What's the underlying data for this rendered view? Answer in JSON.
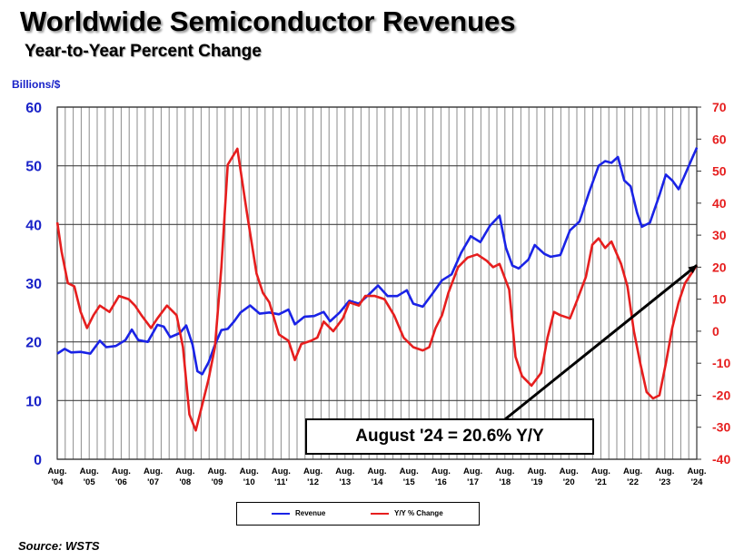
{
  "title": "Worldwide Semiconductor Revenues",
  "subtitle": "Year-to-Year Percent Change",
  "source": "Source: WSTS",
  "colors": {
    "revenue": "#1a23e6",
    "yoy": "#e61e1e",
    "left_axis": "#1a23c8",
    "right_axis": "#e61e1e"
  },
  "chart_data": {
    "type": "line",
    "y_left_label": "Billions/$",
    "y_left_range": [
      0,
      60
    ],
    "y_left_ticks": [
      "0",
      "10",
      "20",
      "30",
      "40",
      "50",
      "60"
    ],
    "y_right_range": [
      -40,
      70
    ],
    "y_right_ticks": [
      "-40",
      "-30",
      "-20",
      "-10",
      "0",
      "10",
      "20",
      "30",
      "40",
      "50",
      "60",
      "70"
    ],
    "x_range": [
      2004.667,
      2024.667
    ],
    "x_ticks": [
      {
        "x": 2004.667,
        "top": "Aug.",
        "bottom": "'04"
      },
      {
        "x": 2005.667,
        "top": "Aug.",
        "bottom": "'05"
      },
      {
        "x": 2006.667,
        "top": "Aug.",
        "bottom": "'06"
      },
      {
        "x": 2007.667,
        "top": "Aug.",
        "bottom": "'07"
      },
      {
        "x": 2008.667,
        "top": "Aug.",
        "bottom": "'08"
      },
      {
        "x": 2009.667,
        "top": "Aug.",
        "bottom": "'09"
      },
      {
        "x": 2010.667,
        "top": "Aug.",
        "bottom": "'10"
      },
      {
        "x": 2011.667,
        "top": "Aug.",
        "bottom": "'11'"
      },
      {
        "x": 2012.667,
        "top": "Aug.",
        "bottom": "'12"
      },
      {
        "x": 2013.667,
        "top": "Aug.",
        "bottom": "'13"
      },
      {
        "x": 2014.667,
        "top": "Aug.",
        "bottom": "'14"
      },
      {
        "x": 2015.667,
        "top": "Aug.",
        "bottom": "'15"
      },
      {
        "x": 2016.667,
        "top": "Aug.",
        "bottom": "'16"
      },
      {
        "x": 2017.667,
        "top": "Aug.",
        "bottom": "'17"
      },
      {
        "x": 2018.667,
        "top": "Aug.",
        "bottom": "'18"
      },
      {
        "x": 2019.667,
        "top": "Aug.",
        "bottom": "'19"
      },
      {
        "x": 2020.667,
        "top": "Aug.",
        "bottom": "'20"
      },
      {
        "x": 2021.667,
        "top": "Aug.",
        "bottom": "'21"
      },
      {
        "x": 2022.667,
        "top": "Aug.",
        "bottom": "'22"
      },
      {
        "x": 2023.667,
        "top": "Aug.",
        "bottom": "'23"
      },
      {
        "x": 2024.667,
        "top": "Aug.",
        "bottom": "'24"
      }
    ],
    "grid": "vertical",
    "series": [
      {
        "name": "Revenue",
        "axis": "left",
        "points": [
          [
            2004.67,
            18.0
          ],
          [
            2004.9,
            18.8
          ],
          [
            2005.1,
            18.2
          ],
          [
            2005.4,
            18.3
          ],
          [
            2005.7,
            18.0
          ],
          [
            2006.0,
            20.2
          ],
          [
            2006.2,
            19.1
          ],
          [
            2006.5,
            19.3
          ],
          [
            2006.8,
            20.3
          ],
          [
            2007.0,
            22.1
          ],
          [
            2007.2,
            20.3
          ],
          [
            2007.5,
            20.0
          ],
          [
            2007.8,
            22.9
          ],
          [
            2008.0,
            22.6
          ],
          [
            2008.2,
            20.8
          ],
          [
            2008.5,
            21.5
          ],
          [
            2008.7,
            22.8
          ],
          [
            2008.9,
            19.5
          ],
          [
            2009.05,
            15.0
          ],
          [
            2009.2,
            14.5
          ],
          [
            2009.4,
            16.5
          ],
          [
            2009.6,
            19.5
          ],
          [
            2009.8,
            22.0
          ],
          [
            2010.0,
            22.2
          ],
          [
            2010.2,
            23.5
          ],
          [
            2010.4,
            25.0
          ],
          [
            2010.7,
            26.2
          ],
          [
            2011.0,
            24.8
          ],
          [
            2011.3,
            25.0
          ],
          [
            2011.6,
            24.7
          ],
          [
            2011.9,
            25.5
          ],
          [
            2012.1,
            23.0
          ],
          [
            2012.4,
            24.3
          ],
          [
            2012.7,
            24.4
          ],
          [
            2013.0,
            25.1
          ],
          [
            2013.2,
            23.5
          ],
          [
            2013.5,
            25.0
          ],
          [
            2013.8,
            27.0
          ],
          [
            2014.1,
            26.5
          ],
          [
            2014.4,
            28.0
          ],
          [
            2014.7,
            29.6
          ],
          [
            2015.0,
            27.8
          ],
          [
            2015.3,
            27.8
          ],
          [
            2015.6,
            28.8
          ],
          [
            2015.8,
            26.5
          ],
          [
            2016.1,
            26.0
          ],
          [
            2016.4,
            28.2
          ],
          [
            2016.7,
            30.5
          ],
          [
            2017.0,
            31.5
          ],
          [
            2017.3,
            35.2
          ],
          [
            2017.6,
            38.0
          ],
          [
            2017.9,
            37.0
          ],
          [
            2018.2,
            39.8
          ],
          [
            2018.5,
            41.5
          ],
          [
            2018.7,
            36.0
          ],
          [
            2018.9,
            33.0
          ],
          [
            2019.1,
            32.5
          ],
          [
            2019.4,
            34.0
          ],
          [
            2019.6,
            36.5
          ],
          [
            2019.9,
            35.0
          ],
          [
            2020.1,
            34.5
          ],
          [
            2020.4,
            34.8
          ],
          [
            2020.7,
            39.0
          ],
          [
            2021.0,
            40.5
          ],
          [
            2021.3,
            45.5
          ],
          [
            2021.6,
            50.0
          ],
          [
            2021.8,
            50.8
          ],
          [
            2022.0,
            50.5
          ],
          [
            2022.2,
            51.5
          ],
          [
            2022.4,
            47.5
          ],
          [
            2022.6,
            46.5
          ],
          [
            2022.8,
            42.0
          ],
          [
            2022.95,
            39.6
          ],
          [
            2023.2,
            40.3
          ],
          [
            2023.5,
            45.0
          ],
          [
            2023.7,
            48.5
          ],
          [
            2023.9,
            47.5
          ],
          [
            2024.1,
            46.0
          ],
          [
            2024.3,
            48.5
          ],
          [
            2024.5,
            51.0
          ],
          [
            2024.67,
            53.1
          ]
        ]
      },
      {
        "name": "Y/Y % Change",
        "axis": "right",
        "points": [
          [
            2004.67,
            34.0
          ],
          [
            2004.8,
            25.0
          ],
          [
            2005.0,
            15.0
          ],
          [
            2005.2,
            14.0
          ],
          [
            2005.4,
            6.0
          ],
          [
            2005.6,
            1.0
          ],
          [
            2005.8,
            5.0
          ],
          [
            2006.0,
            8.0
          ],
          [
            2006.3,
            6.0
          ],
          [
            2006.6,
            11.0
          ],
          [
            2006.9,
            10.0
          ],
          [
            2007.1,
            8.0
          ],
          [
            2007.3,
            5.0
          ],
          [
            2007.6,
            1.0
          ],
          [
            2007.8,
            4.0
          ],
          [
            2008.1,
            8.0
          ],
          [
            2008.4,
            5.0
          ],
          [
            2008.6,
            -5.0
          ],
          [
            2008.8,
            -26.0
          ],
          [
            2009.0,
            -31.0
          ],
          [
            2009.2,
            -23.0
          ],
          [
            2009.4,
            -15.0
          ],
          [
            2009.6,
            -5.0
          ],
          [
            2009.8,
            20.0
          ],
          [
            2010.0,
            52.0
          ],
          [
            2010.3,
            57.0
          ],
          [
            2010.6,
            37.0
          ],
          [
            2010.9,
            18.0
          ],
          [
            2011.1,
            12.0
          ],
          [
            2011.3,
            9.0
          ],
          [
            2011.6,
            -1.0
          ],
          [
            2011.9,
            -3.0
          ],
          [
            2012.1,
            -9.0
          ],
          [
            2012.3,
            -4.0
          ],
          [
            2012.6,
            -3.0
          ],
          [
            2012.8,
            -2.0
          ],
          [
            2013.0,
            3.0
          ],
          [
            2013.3,
            0.0
          ],
          [
            2013.6,
            4.0
          ],
          [
            2013.8,
            9.0
          ],
          [
            2014.1,
            8.0
          ],
          [
            2014.3,
            11.0
          ],
          [
            2014.6,
            11.0
          ],
          [
            2014.9,
            10.0
          ],
          [
            2015.2,
            5.0
          ],
          [
            2015.5,
            -2.0
          ],
          [
            2015.8,
            -5.0
          ],
          [
            2016.1,
            -6.0
          ],
          [
            2016.3,
            -5.0
          ],
          [
            2016.5,
            1.0
          ],
          [
            2016.7,
            5.0
          ],
          [
            2016.9,
            12.0
          ],
          [
            2017.2,
            20.0
          ],
          [
            2017.5,
            23.0
          ],
          [
            2017.8,
            24.0
          ],
          [
            2018.1,
            22.0
          ],
          [
            2018.3,
            20.0
          ],
          [
            2018.5,
            21.0
          ],
          [
            2018.8,
            13.0
          ],
          [
            2019.0,
            -8.0
          ],
          [
            2019.2,
            -14.0
          ],
          [
            2019.5,
            -17.0
          ],
          [
            2019.8,
            -13.0
          ],
          [
            2020.0,
            -2.0
          ],
          [
            2020.2,
            6.0
          ],
          [
            2020.4,
            5.0
          ],
          [
            2020.7,
            4.0
          ],
          [
            2020.9,
            9.0
          ],
          [
            2021.2,
            17.0
          ],
          [
            2021.4,
            27.0
          ],
          [
            2021.6,
            29.0
          ],
          [
            2021.8,
            26.0
          ],
          [
            2022.0,
            28.0
          ],
          [
            2022.3,
            21.0
          ],
          [
            2022.5,
            14.0
          ],
          [
            2022.7,
            0.0
          ],
          [
            2022.9,
            -10.0
          ],
          [
            2023.1,
            -19.0
          ],
          [
            2023.3,
            -21.0
          ],
          [
            2023.5,
            -20.0
          ],
          [
            2023.7,
            -10.0
          ],
          [
            2023.9,
            1.0
          ],
          [
            2024.1,
            9.0
          ],
          [
            2024.3,
            15.0
          ],
          [
            2024.5,
            18.0
          ],
          [
            2024.67,
            20.6
          ]
        ]
      }
    ],
    "annotations": [
      {
        "text": "August '24 = 20.6% Y/Y",
        "arrow_from": [
          2018.3,
          -30.5
        ],
        "arrow_to": [
          2024.67,
          20.6
        ]
      }
    ],
    "legend_placement": "bottom-center"
  }
}
